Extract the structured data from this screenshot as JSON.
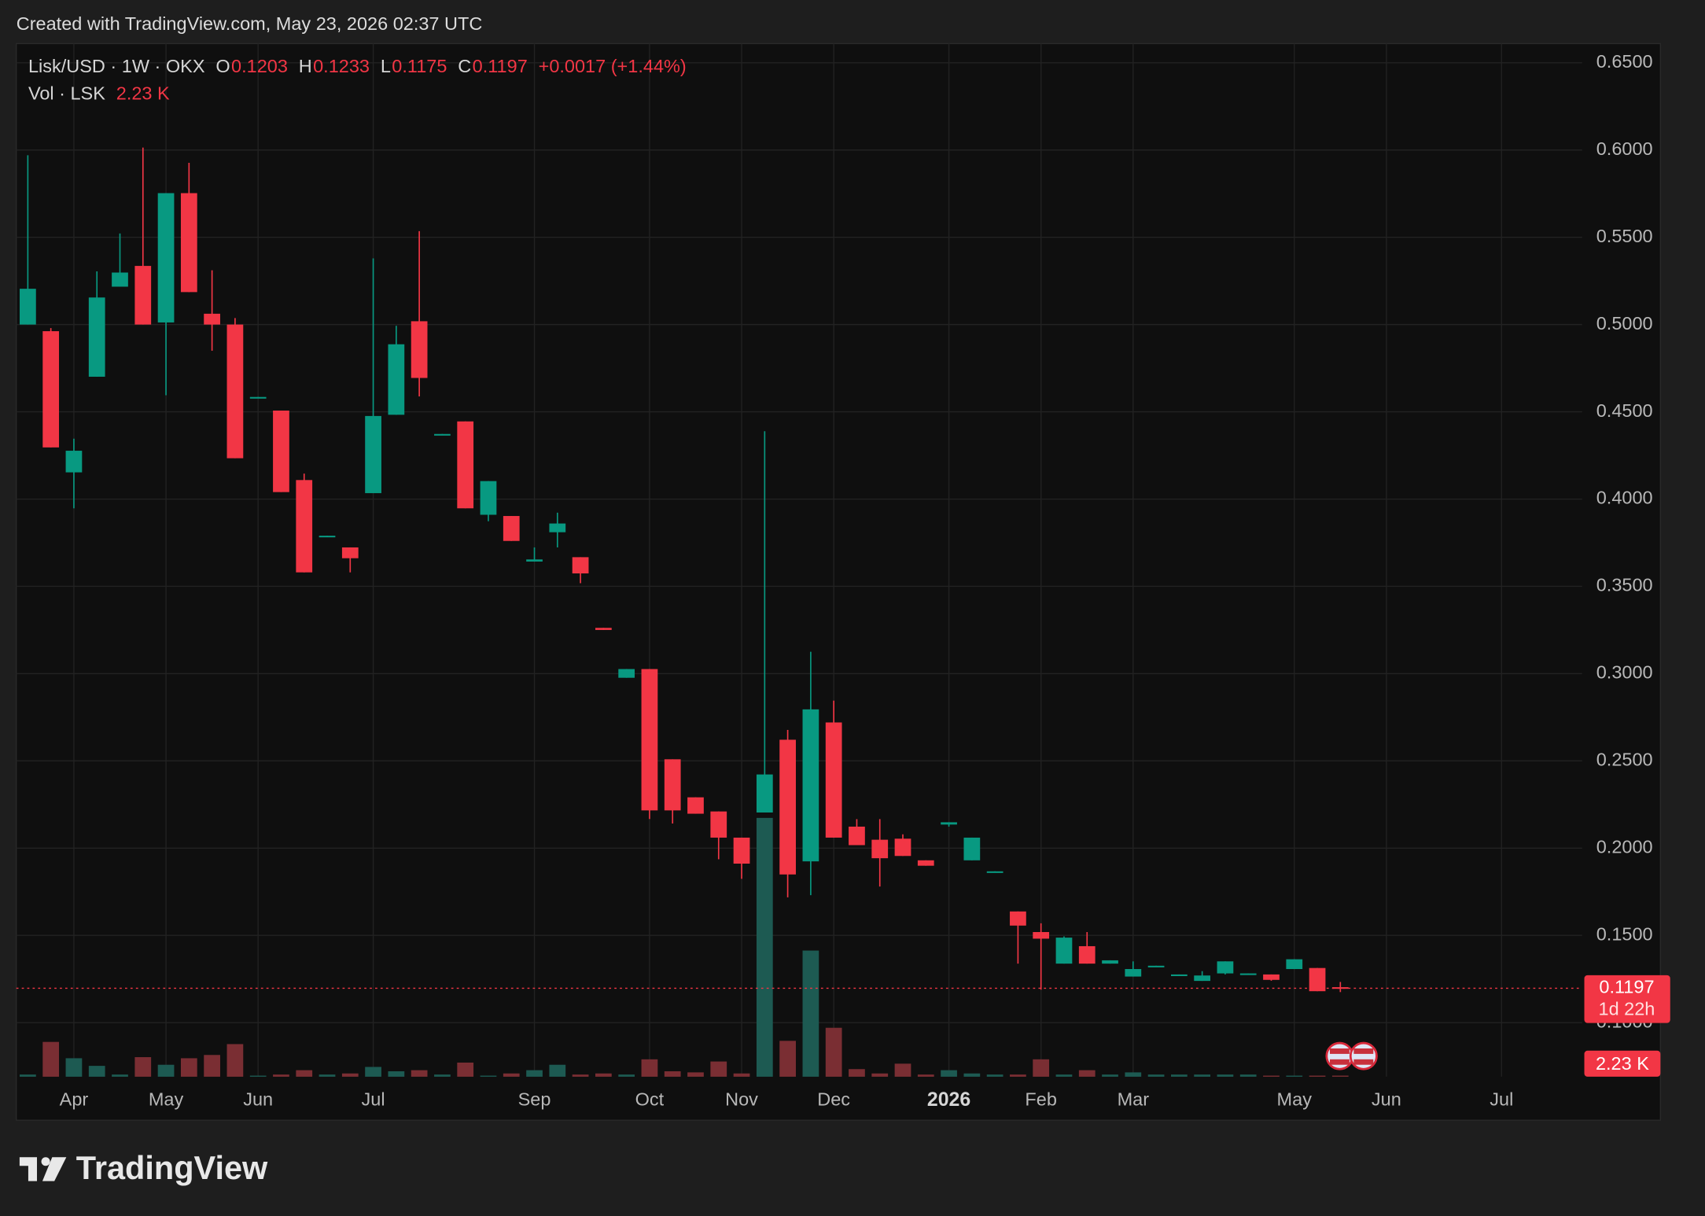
{
  "header": {
    "created": "Created with TradingView.com, May 23, 2026 02:37 UTC"
  },
  "footer": {
    "brand": "TradingView"
  },
  "chart_data": {
    "type": "candlestick",
    "title": "Lisk/USD · 1W · OKX",
    "ohlc_keys": [
      "O",
      "H",
      "L",
      "C"
    ],
    "change_label": "+0.0017 (+1.44%)",
    "volume_title": "Vol · LSK",
    "volume_label": "2.23 K",
    "countdown": "1d 22h",
    "up_color": "#089981",
    "down_color": "#f23645",
    "volume_up_color": "#1d5a52",
    "volume_down_color": "#7a2e33",
    "grid": true,
    "xlim": [
      -0.5,
      67.5
    ],
    "xticks": [
      {
        "value": 2,
        "label": "Apr"
      },
      {
        "value": 6,
        "label": "May"
      },
      {
        "value": 10,
        "label": "Jun"
      },
      {
        "value": 15,
        "label": "Jul"
      },
      {
        "value": 22,
        "label": "Sep"
      },
      {
        "value": 27,
        "label": "Oct"
      },
      {
        "value": 31,
        "label": "Nov"
      },
      {
        "value": 35,
        "label": "Dec"
      },
      {
        "value": 40,
        "label": "2026"
      },
      {
        "value": 44,
        "label": "Feb"
      },
      {
        "value": 48,
        "label": "Mar"
      },
      {
        "value": 55,
        "label": "May"
      },
      {
        "value": 59,
        "label": "Jun"
      },
      {
        "value": 64,
        "label": "Jul"
      }
    ],
    "ylim": [
      0.069,
      0.661
    ],
    "yticks": [
      {
        "value": 0.1,
        "label": "0.1000"
      },
      {
        "value": 0.15,
        "label": "0.1500"
      },
      {
        "value": 0.2,
        "label": "0.2000"
      },
      {
        "value": 0.25,
        "label": "0.2500"
      },
      {
        "value": 0.3,
        "label": "0.3000"
      },
      {
        "value": 0.35,
        "label": "0.3500"
      },
      {
        "value": 0.4,
        "label": "0.4000"
      },
      {
        "value": 0.45,
        "label": "0.4500"
      },
      {
        "value": 0.5,
        "label": "0.5000"
      },
      {
        "value": 0.55,
        "label": "0.5500"
      },
      {
        "value": 0.6,
        "label": "0.6000"
      },
      {
        "value": 0.65,
        "label": "0.6500"
      }
    ],
    "open": [
      0.5,
      0.4962,
      0.4153,
      0.4701,
      0.5217,
      0.5336,
      0.5012,
      0.5753,
      0.5062,
      0.5,
      0.458,
      0.4507,
      0.4109,
      0.3785,
      0.3723,
      0.4034,
      0.4483,
      0.5019,
      0.4368,
      0.4445,
      0.391,
      0.3903,
      0.3642,
      0.381,
      0.3667,
      0.3262,
      0.2976,
      0.3026,
      0.2509,
      0.2291,
      0.221,
      0.206,
      0.2204,
      0.2621,
      0.1924,
      0.272,
      0.2123,
      0.2048,
      0.2054,
      0.193,
      0.2135,
      0.193,
      0.1864,
      0.1637,
      0.1519,
      0.1338,
      0.1438,
      0.1338,
      0.1264,
      0.1323,
      0.127,
      0.1239,
      0.1282,
      0.128,
      0.1276,
      0.1307,
      0.1313,
      0.1203
    ],
    "high": [
      0.597,
      0.498,
      0.4346,
      0.5305,
      0.5522,
      0.6014,
      0.5753,
      0.5927,
      0.5311,
      0.5037,
      0.4585,
      0.4507,
      0.4146,
      0.379,
      0.3723,
      0.5379,
      0.4993,
      0.5535,
      0.4373,
      0.4445,
      0.4103,
      0.3903,
      0.3723,
      0.3922,
      0.3667,
      0.3262,
      0.3026,
      0.3026,
      0.2509,
      0.2291,
      0.221,
      0.206,
      0.4389,
      0.2677,
      0.3125,
      0.2845,
      0.2166,
      0.2166,
      0.2079,
      0.193,
      0.2148,
      0.206,
      0.1867,
      0.1637,
      0.1569,
      0.1494,
      0.1519,
      0.1357,
      0.1351,
      0.1326,
      0.1276,
      0.1295,
      0.1351,
      0.1282,
      0.1276,
      0.1363,
      0.1313,
      0.1233
    ],
    "low": [
      0.5,
      0.4296,
      0.3947,
      0.4701,
      0.5217,
      0.5,
      0.4595,
      0.5186,
      0.485,
      0.4234,
      0.458,
      0.404,
      0.358,
      0.3785,
      0.358,
      0.4034,
      0.4483,
      0.4588,
      0.4368,
      0.3947,
      0.3873,
      0.376,
      0.3642,
      0.3723,
      0.3518,
      0.325,
      0.2976,
      0.2167,
      0.2141,
      0.2197,
      0.1936,
      0.1824,
      0.2204,
      0.1718,
      0.173,
      0.206,
      0.2017,
      0.178,
      0.1955,
      0.1899,
      0.2123,
      0.193,
      0.1864,
      0.1338,
      0.1189,
      0.1338,
      0.1338,
      0.1338,
      0.1264,
      0.1323,
      0.127,
      0.1239,
      0.1276,
      0.128,
      0.124,
      0.1307,
      0.118,
      0.1175
    ],
    "close": [
      0.5205,
      0.4296,
      0.4277,
      0.5155,
      0.5298,
      0.5,
      0.5753,
      0.5186,
      0.5,
      0.4234,
      0.4585,
      0.404,
      0.358,
      0.379,
      0.3661,
      0.4476,
      0.4887,
      0.4694,
      0.4373,
      0.3947,
      0.4103,
      0.376,
      0.3654,
      0.386,
      0.3574,
      0.325,
      0.3026,
      0.2216,
      0.2216,
      0.2197,
      0.206,
      0.1911,
      0.2422,
      0.1849,
      0.2795,
      0.206,
      0.2017,
      0.1942,
      0.1955,
      0.1899,
      0.2148,
      0.206,
      0.1867,
      0.1556,
      0.1481,
      0.1487,
      0.1338,
      0.1357,
      0.1307,
      0.1326,
      0.1276,
      0.127,
      0.1351,
      0.1282,
      0.1245,
      0.1363,
      0.118,
      0.1197
    ],
    "volume": [
      4.4,
      70.4,
      37.4,
      22,
      4.4,
      39.6,
      24.2,
      37.4,
      44,
      66,
      2.2,
      4.4,
      13.2,
      4.4,
      6.6,
      19.8,
      11,
      13.2,
      4.4,
      28.6,
      2.2,
      6.6,
      13.2,
      24.2,
      4.4,
      6.6,
      4.4,
      35.2,
      11,
      8.8,
      30.8,
      6.6,
      523.6,
      72.6,
      255.2,
      99,
      15.4,
      6.6,
      26.4,
      4.4,
      13.2,
      6.6,
      4.4,
      4.4,
      35.2,
      4.4,
      13.2,
      4.4,
      8.8,
      4.4,
      4.4,
      4.4,
      4.4,
      4.4,
      2.2,
      2.2,
      2.2,
      2.23
    ]
  }
}
